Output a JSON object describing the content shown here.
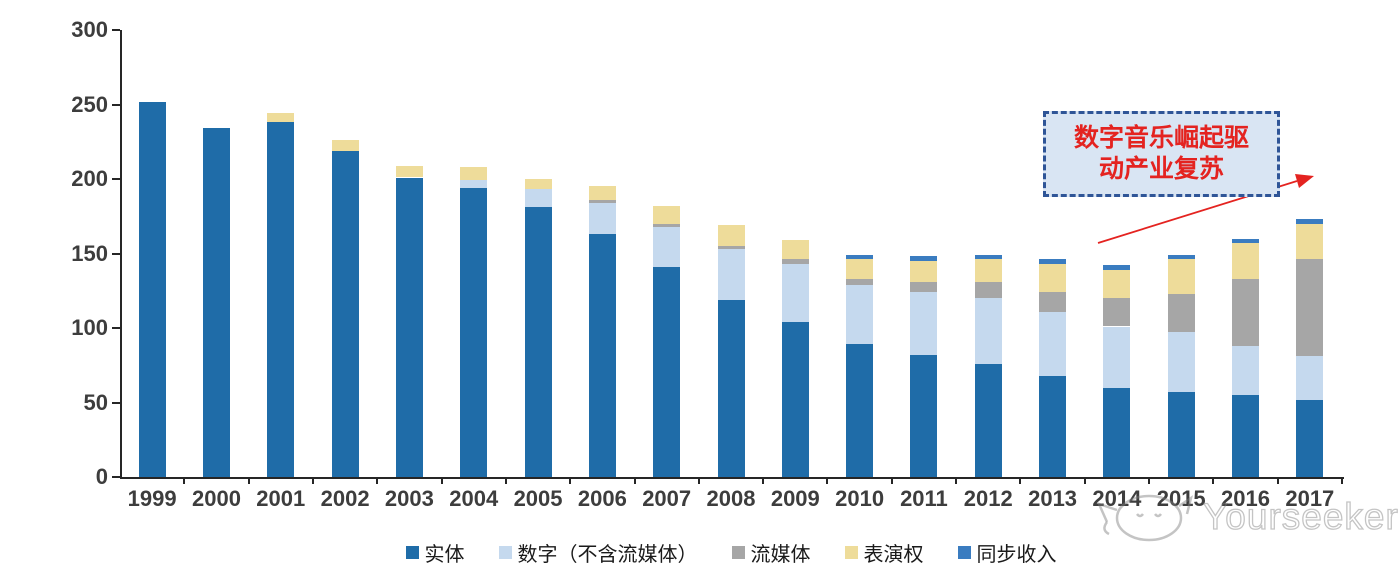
{
  "chart_data": {
    "type": "bar",
    "stacked": true,
    "title": "",
    "xlabel": "",
    "ylabel": "",
    "categories": [
      "1999",
      "2000",
      "2001",
      "2002",
      "2003",
      "2004",
      "2005",
      "2006",
      "2007",
      "2008",
      "2009",
      "2010",
      "2011",
      "2012",
      "2013",
      "2014",
      "2015",
      "2016",
      "2017"
    ],
    "series": [
      {
        "name": "实体",
        "color": "#1f6ca8",
        "values": [
          252,
          234,
          238,
          219,
          201,
          194,
          181,
          163,
          141,
          119,
          104,
          89,
          82,
          76,
          68,
          60,
          57,
          55,
          52
        ]
      },
      {
        "name": "数字（不含流媒体）",
        "color": "#c5d9ee",
        "values": [
          0,
          0,
          0,
          0,
          0,
          5,
          12,
          21,
          27,
          34,
          39,
          40,
          42,
          44,
          43,
          41,
          40,
          33,
          29
        ]
      },
      {
        "name": "流媒体",
        "color": "#a6a6a6",
        "values": [
          0,
          0,
          0,
          0,
          0,
          0,
          0,
          2,
          2,
          2,
          3,
          4,
          7,
          11,
          13,
          19,
          26,
          45,
          65
        ]
      },
      {
        "name": "表演权",
        "color": "#eedc9a",
        "values": [
          0,
          0,
          6,
          7,
          8,
          9,
          7,
          9,
          12,
          14,
          13,
          13,
          14,
          15,
          19,
          19,
          23,
          24,
          24
        ]
      },
      {
        "name": "同步收入",
        "color": "#3a7cc0",
        "values": [
          0,
          0,
          0,
          0,
          0,
          0,
          0,
          0,
          0,
          0,
          0,
          3,
          3,
          3,
          3,
          3,
          3,
          3,
          3
        ]
      }
    ],
    "ylim": [
      0,
      300
    ],
    "yticks": [
      0,
      50,
      100,
      150,
      200,
      250,
      300
    ],
    "grid": false,
    "legend_position": "bottom",
    "annotation": {
      "line1": "数字音乐崛起驱",
      "line2": "动产业复苏",
      "text_color": "#e42320",
      "box_fill": "#d9e5f3",
      "box_border": "#2f5597",
      "arrow_color": "#e42320"
    },
    "axis_color": "#262626",
    "label_color": "#3d3d3d"
  },
  "watermark": {
    "brand": "Yourseeker",
    "logo": "cat-face-icon"
  }
}
